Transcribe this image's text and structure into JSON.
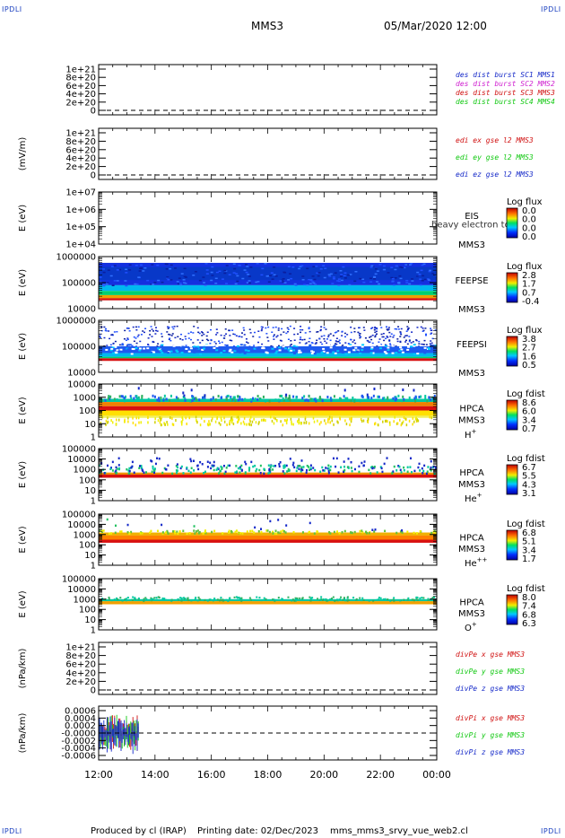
{
  "corner_mark": "IPDLI",
  "header": {
    "spacecraft": "MMS3",
    "datetime": "05/Mar/2020 12:00"
  },
  "footer": {
    "produced_by": "Produced by cl (IRAP)",
    "printing_date": "Printing date: 02/Dec/2023",
    "script": "mms_mms3_srvy_vue_web2.cl"
  },
  "colors": {
    "blue": "#1428c8",
    "magenta": "#d020d0",
    "red": "#d01010",
    "green": "#10c810",
    "black": "#000000"
  },
  "chart_data": [
    {
      "type": "line",
      "ylabel": "",
      "yticks": [
        "1e+21",
        "8e+20",
        "6e+20",
        "4e+20",
        "2e+20",
        "0"
      ],
      "xticks": [
        "12:00",
        "14:00",
        "16:00",
        "18:00",
        "20:00",
        "22:00",
        "00:00"
      ],
      "legend": [
        {
          "name": "des dist burst SC1 MMS1",
          "color": "#1428c8"
        },
        {
          "name": "des dist burst SC2 MMS2",
          "color": "#d020d0"
        },
        {
          "name": "des dist burst SC3 MMS3",
          "color": "#d01010"
        },
        {
          "name": "des dist burst SC4 MMS4",
          "color": "#10c810"
        }
      ],
      "series_values": "none",
      "zero_line": true
    },
    {
      "type": "line",
      "ylabel": "(mV/m)",
      "yticks": [
        "1e+21",
        "8e+20",
        "6e+20",
        "4e+20",
        "2e+20",
        "0"
      ],
      "legend": [
        {
          "name": "edi ex gse l2 MMS3",
          "color": "#d01010"
        },
        {
          "name": "edi ey gse l2 MMS3",
          "color": "#10c810"
        },
        {
          "name": "edi ez gse l2 MMS3",
          "color": "#1428c8"
        }
      ],
      "zero_line": true
    },
    {
      "type": "heatmap",
      "ylabel": "E (eV)",
      "yticks": [
        "1e+07",
        "1e+06",
        "1e+05",
        "1e+04"
      ],
      "yscale": "log",
      "instrument": "EIS",
      "spacecraft": "MMS3",
      "overlay_text": "heavy electron to",
      "colorbar": {
        "title": "Log flux",
        "ticks": [
          "0.0",
          "0.0",
          "0.0",
          "0.0"
        ]
      },
      "fill": "none"
    },
    {
      "type": "heatmap",
      "ylabel": "E (eV)",
      "yticks": [
        "1000000",
        "100000",
        "10000"
      ],
      "yscale": "log",
      "instrument": "FEEPSE",
      "spacecraft": "MMS3",
      "colorbar": {
        "title": "Log flux",
        "ticks": [
          "2.8",
          "1.7",
          "0.7",
          "-0.4"
        ]
      },
      "coverage": {
        "x_start": "12:00",
        "x_end": "00:00"
      }
    },
    {
      "type": "heatmap",
      "ylabel": "E (eV)",
      "yticks": [
        "1000000",
        "100000",
        "10000"
      ],
      "yscale": "log",
      "instrument": "FEEPSI",
      "spacecraft": "MMS3",
      "colorbar": {
        "title": "Log flux",
        "ticks": [
          "3.8",
          "2.7",
          "1.6",
          "0.5"
        ]
      },
      "coverage": {
        "x_start": "12:00",
        "x_end": "00:00"
      }
    },
    {
      "type": "heatmap",
      "ylabel": "E (eV)",
      "yticks": [
        "10000",
        "1000",
        "100",
        "10",
        "1"
      ],
      "yscale": "log",
      "instrument": "HPCA",
      "spacecraft": "MMS3",
      "species": "H",
      "species_sup": "+",
      "colorbar": {
        "title": "Log fdist",
        "ticks": [
          "8.6",
          "6.0",
          "3.4",
          "0.7"
        ]
      }
    },
    {
      "type": "heatmap",
      "ylabel": "E (eV)",
      "yticks": [
        "100000",
        "10000",
        "1000",
        "100",
        "10",
        "1"
      ],
      "yscale": "log",
      "instrument": "HPCA",
      "spacecraft": "MMS3",
      "species": "He",
      "species_sup": "+",
      "colorbar": {
        "title": "Log fdist",
        "ticks": [
          "6.7",
          "5.5",
          "4.3",
          "3.1"
        ]
      }
    },
    {
      "type": "heatmap",
      "ylabel": "E (eV)",
      "yticks": [
        "100000",
        "10000",
        "1000",
        "100",
        "10",
        "1"
      ],
      "yscale": "log",
      "instrument": "HPCA",
      "spacecraft": "MMS3",
      "species": "He",
      "species_sup": "++",
      "colorbar": {
        "title": "Log fdist",
        "ticks": [
          "6.8",
          "5.1",
          "3.4",
          "1.7"
        ]
      }
    },
    {
      "type": "heatmap",
      "ylabel": "E (eV)",
      "yticks": [
        "100000",
        "10000",
        "1000",
        "100",
        "10",
        "1"
      ],
      "yscale": "log",
      "instrument": "HPCA",
      "spacecraft": "MMS3",
      "species": "O",
      "species_sup": "+",
      "colorbar": {
        "title": "Log fdist",
        "ticks": [
          "8.0",
          "7.4",
          "6.8",
          "6.3"
        ]
      }
    },
    {
      "type": "line",
      "ylabel": "(nPa/km)",
      "yticks": [
        "1e+21",
        "8e+20",
        "6e+20",
        "4e+20",
        "2e+20",
        "0"
      ],
      "legend": [
        {
          "name": "divPe x gse MMS3",
          "color": "#d01010"
        },
        {
          "name": "divPe y gse MMS3",
          "color": "#10c810"
        },
        {
          "name": "divPe z gse MMS3",
          "color": "#1428c8"
        }
      ],
      "zero_line": true
    },
    {
      "type": "line",
      "ylabel": "(nPa/km)",
      "yticks": [
        "0.0006",
        "0.0004",
        "0.0002",
        "-0.0000",
        "-0.0002",
        "-0.0004",
        "-0.0006"
      ],
      "ylim": [
        -0.0006,
        0.0006
      ],
      "legend": [
        {
          "name": "divPi x gse MMS3",
          "color": "#d01010"
        },
        {
          "name": "divPi y gse MMS3",
          "color": "#10c810"
        },
        {
          "name": "divPi z gse MMS3",
          "color": "#1428c8"
        }
      ],
      "data_span": {
        "x_start": "12:00",
        "x_end": "13:25"
      },
      "zero_line": true
    }
  ]
}
